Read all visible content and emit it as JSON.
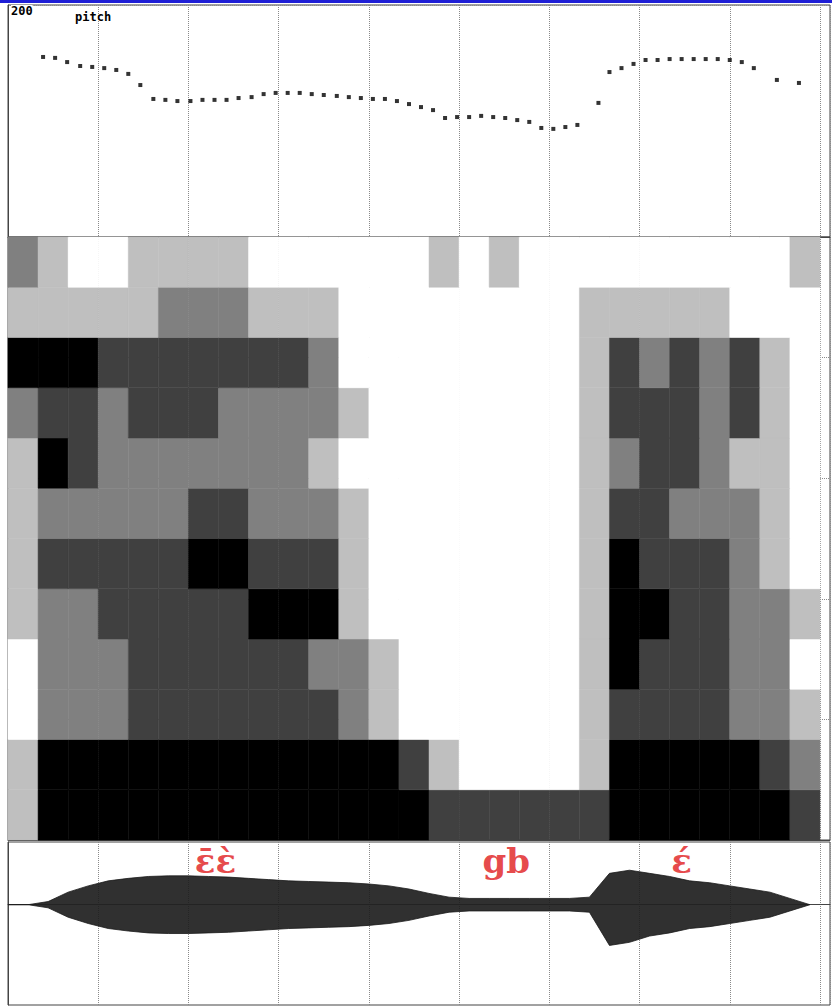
{
  "chart_data": [
    {
      "type": "scatter",
      "title": "pitch",
      "marker": "square",
      "color": "#000000",
      "x": [
        35,
        47,
        59,
        72,
        84,
        96,
        108,
        120,
        132,
        145,
        157,
        169,
        182,
        194,
        206,
        218,
        230,
        243,
        255,
        267,
        279,
        291,
        303,
        315,
        328,
        340,
        352,
        364,
        376,
        388,
        400,
        412,
        424,
        436,
        448,
        460,
        472,
        484,
        496,
        508,
        520,
        532,
        544,
        556,
        568,
        589,
        600,
        612,
        624,
        636,
        648,
        660,
        672,
        684,
        696,
        708,
        720,
        732,
        744,
        767,
        789
      ],
      "values": [
        177.6,
        177.2,
        175.4,
        173.7,
        173.3,
        172.8,
        172.0,
        170.3,
        165.5,
        159.5,
        159.1,
        158.6,
        158.6,
        159.1,
        159.1,
        159.1,
        159.9,
        160.3,
        161.6,
        162.1,
        162.1,
        162.1,
        161.6,
        161.2,
        160.8,
        160.3,
        159.9,
        159.5,
        159.5,
        158.6,
        157.3,
        156.0,
        154.7,
        151.3,
        151.7,
        151.7,
        152.2,
        151.7,
        151.3,
        150.4,
        149.6,
        147.0,
        146.6,
        147.4,
        148.3,
        157.8,
        171.1,
        172.8,
        174.6,
        176.3,
        176.3,
        176.7,
        176.7,
        176.7,
        176.7,
        176.7,
        176.3,
        175.4,
        172.8,
        167.7,
        166.4
      ],
      "xlim": [
        0,
        820
      ],
      "xticks": [
        0,
        90,
        180,
        270,
        360,
        450,
        540,
        630,
        720,
        810
      ],
      "ylim": [
        100,
        200
      ],
      "yticks": [
        100,
        200
      ],
      "grid": true,
      "tick_labels": "y"
    },
    {
      "type": "spectrogram",
      "time_edges": [
        0,
        30,
        60,
        90,
        120,
        150,
        180,
        210,
        240,
        270,
        300,
        330,
        360,
        390,
        420,
        450,
        480,
        510,
        540,
        570,
        600,
        630,
        660,
        690,
        720,
        750,
        780,
        810
      ],
      "freq_edges": [
        0,
        5,
        10,
        15,
        20,
        25,
        30,
        35,
        40,
        45,
        50,
        55,
        60
      ],
      "intensity": [
        [
          1,
          4,
          4,
          4,
          4,
          4,
          4,
          4,
          4,
          4,
          4,
          4,
          4,
          4,
          3,
          3,
          3,
          3,
          3,
          3,
          4,
          4,
          4,
          4,
          4,
          4,
          3
        ],
        [
          1,
          4,
          4,
          4,
          4,
          4,
          4,
          4,
          4,
          4,
          4,
          4,
          4,
          3,
          1,
          0,
          0,
          0,
          0,
          1,
          4,
          4,
          4,
          4,
          4,
          3,
          2
        ],
        [
          0,
          2,
          2,
          2,
          3,
          3,
          3,
          3,
          3,
          3,
          3,
          2,
          1,
          0,
          0,
          0,
          0,
          0,
          0,
          1,
          3,
          3,
          3,
          3,
          2,
          2,
          1
        ],
        [
          0,
          2,
          2,
          2,
          3,
          3,
          3,
          3,
          3,
          3,
          2,
          2,
          1,
          0,
          0,
          0,
          0,
          0,
          0,
          1,
          4,
          3,
          3,
          3,
          2,
          2,
          0
        ],
        [
          1,
          2,
          2,
          3,
          3,
          3,
          3,
          3,
          4,
          4,
          4,
          1,
          0,
          0,
          0,
          0,
          0,
          0,
          0,
          1,
          4,
          4,
          3,
          3,
          2,
          2,
          1
        ],
        [
          1,
          3,
          3,
          3,
          3,
          3,
          4,
          4,
          3,
          3,
          3,
          1,
          0,
          0,
          0,
          0,
          0,
          0,
          0,
          1,
          4,
          3,
          3,
          3,
          2,
          1,
          0
        ],
        [
          1,
          2,
          2,
          2,
          2,
          2,
          3,
          3,
          2,
          2,
          2,
          1,
          0,
          0,
          0,
          0,
          0,
          0,
          0,
          1,
          3,
          3,
          2,
          2,
          2,
          1,
          0
        ],
        [
          1,
          4,
          3,
          2,
          2,
          2,
          2,
          2,
          2,
          2,
          1,
          0,
          0,
          0,
          0,
          0,
          0,
          0,
          0,
          1,
          2,
          3,
          3,
          2,
          1,
          1,
          0
        ],
        [
          2,
          3,
          3,
          2,
          3,
          3,
          3,
          2,
          2,
          2,
          2,
          1,
          0,
          0,
          0,
          0,
          0,
          0,
          0,
          1,
          3,
          3,
          3,
          2,
          3,
          1,
          0
        ],
        [
          4,
          4,
          4,
          3,
          3,
          3,
          3,
          3,
          3,
          3,
          2,
          0,
          0,
          0,
          0,
          0,
          0,
          0,
          0,
          1,
          3,
          2,
          3,
          2,
          3,
          1,
          0
        ],
        [
          1,
          1,
          1,
          1,
          1,
          2,
          2,
          2,
          1,
          1,
          1,
          0,
          0,
          0,
          0,
          0,
          0,
          0,
          0,
          1,
          1,
          1,
          1,
          1,
          0,
          0,
          0
        ],
        [
          2,
          1,
          0,
          0,
          1,
          1,
          1,
          1,
          0,
          0,
          0,
          0,
          0,
          0,
          1,
          0,
          1,
          0,
          0,
          0,
          0,
          0,
          0,
          0,
          0,
          0,
          1
        ]
      ],
      "zlim": [
        0,
        4
      ],
      "xlim": [
        0,
        820
      ],
      "xticks": [
        0,
        90,
        180,
        270,
        360,
        450,
        540,
        630,
        720,
        810
      ],
      "ylim": [
        0,
        60
      ],
      "yticks": [
        0,
        12,
        24,
        36,
        48,
        60
      ],
      "grid": true,
      "tick_labels": false
    },
    {
      "type": "waveform",
      "color": "#1a1a1a",
      "x": [
        0,
        20,
        40,
        60,
        80,
        100,
        120,
        140,
        160,
        180,
        200,
        220,
        240,
        260,
        280,
        300,
        320,
        340,
        360,
        380,
        400,
        420,
        440,
        460,
        480,
        500,
        520,
        540,
        560,
        580,
        600,
        620,
        640,
        660,
        680,
        700,
        720,
        740,
        760,
        780,
        800
      ],
      "upper": [
        0,
        0,
        0.05,
        0.2,
        0.3,
        0.38,
        0.42,
        0.45,
        0.46,
        0.46,
        0.45,
        0.44,
        0.42,
        0.4,
        0.38,
        0.37,
        0.36,
        0.35,
        0.33,
        0.3,
        0.25,
        0.18,
        0.12,
        0.1,
        0.1,
        0.1,
        0.1,
        0.1,
        0.1,
        0.12,
        0.5,
        0.55,
        0.5,
        0.45,
        0.38,
        0.35,
        0.3,
        0.25,
        0.2,
        0.1,
        0
      ],
      "lower": [
        0,
        0,
        -0.05,
        -0.2,
        -0.3,
        -0.38,
        -0.42,
        -0.45,
        -0.46,
        -0.46,
        -0.45,
        -0.44,
        -0.42,
        -0.4,
        -0.38,
        -0.37,
        -0.36,
        -0.35,
        -0.33,
        -0.3,
        -0.25,
        -0.18,
        -0.12,
        -0.1,
        -0.1,
        -0.1,
        -0.1,
        -0.1,
        -0.1,
        -0.12,
        -0.65,
        -0.6,
        -0.5,
        -0.45,
        -0.38,
        -0.35,
        -0.3,
        -0.25,
        -0.2,
        -0.1,
        0
      ],
      "annotations": [
        {
          "text": "ɛ̄ɛ̀",
          "x": 207,
          "y": 0.7,
          "color": "#e0191b"
        },
        {
          "text": "gb",
          "x": 497,
          "y": 0.7,
          "color": "#e0191b"
        },
        {
          "text": "ɛ́",
          "x": 672,
          "y": 0.7,
          "color": "#e0191b"
        }
      ],
      "xlim": [
        0,
        820
      ],
      "xticks": [
        0,
        90,
        180,
        270,
        360,
        450,
        540,
        630,
        720,
        810
      ],
      "ylim": [
        -1.6,
        1
      ],
      "grid": true,
      "tick_labels": false
    }
  ]
}
